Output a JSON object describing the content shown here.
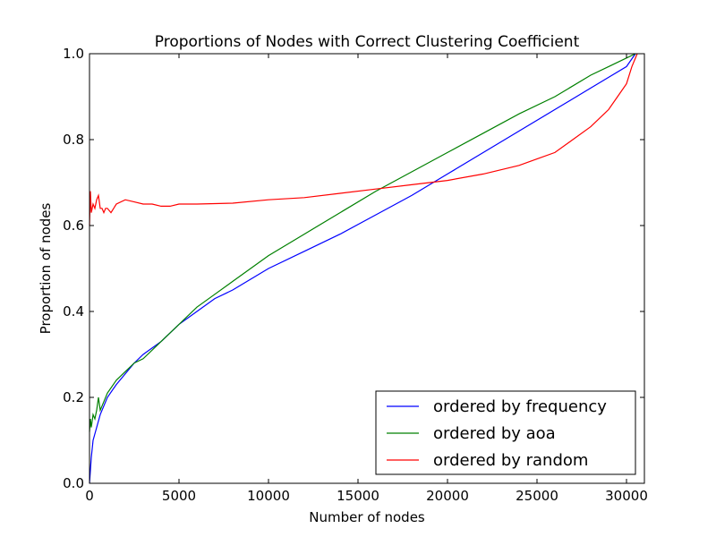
{
  "chart_data": {
    "type": "line",
    "title": "Proportions of Nodes with Correct Clustering Coefficient",
    "xlabel": "Number of nodes",
    "ylabel": "Proportion of nodes",
    "xlim": [
      0,
      31000
    ],
    "ylim": [
      0.0,
      1.0
    ],
    "xticks": [
      0,
      5000,
      10000,
      15000,
      20000,
      25000,
      30000
    ],
    "xtick_labels": [
      "0",
      "5000",
      "10000",
      "15000",
      "20000",
      "25000",
      "30000"
    ],
    "yticks": [
      0.0,
      0.2,
      0.4,
      0.6,
      0.8,
      1.0
    ],
    "ytick_labels": [
      "0.0",
      "0.2",
      "0.4",
      "0.6",
      "0.8",
      "1.0"
    ],
    "grid": false,
    "legend_position": "lower-right",
    "series": [
      {
        "name": "ordered by frequency",
        "color": "#0000ff",
        "x": [
          1,
          100,
          200,
          400,
          600,
          1000,
          1500,
          2000,
          2500,
          3000,
          4000,
          5000,
          6000,
          7000,
          8000,
          9000,
          10000,
          12000,
          14000,
          16000,
          18000,
          20000,
          22000,
          24000,
          26000,
          28000,
          29000,
          30000,
          30500
        ],
        "y": [
          0.0,
          0.06,
          0.1,
          0.13,
          0.16,
          0.2,
          0.23,
          0.255,
          0.28,
          0.3,
          0.33,
          0.37,
          0.4,
          0.43,
          0.45,
          0.475,
          0.5,
          0.54,
          0.58,
          0.625,
          0.67,
          0.72,
          0.77,
          0.82,
          0.87,
          0.92,
          0.945,
          0.97,
          1.0
        ]
      },
      {
        "name": "ordered by aoa",
        "color": "#008000",
        "x": [
          1,
          50,
          100,
          200,
          300,
          400,
          500,
          600,
          800,
          1000,
          1500,
          2000,
          2500,
          3000,
          4000,
          5000,
          6000,
          7000,
          8000,
          9000,
          10000,
          12000,
          14000,
          16000,
          18000,
          20000,
          22000,
          24000,
          26000,
          28000,
          29000,
          30000,
          30500
        ],
        "y": [
          0.12,
          0.15,
          0.13,
          0.16,
          0.15,
          0.17,
          0.2,
          0.17,
          0.19,
          0.21,
          0.24,
          0.26,
          0.28,
          0.29,
          0.33,
          0.37,
          0.41,
          0.44,
          0.47,
          0.5,
          0.53,
          0.58,
          0.63,
          0.68,
          0.725,
          0.77,
          0.815,
          0.86,
          0.9,
          0.95,
          0.97,
          0.99,
          1.0
        ]
      },
      {
        "name": "ordered by random",
        "color": "#ff0000",
        "x": [
          1,
          50,
          100,
          200,
          300,
          400,
          500,
          600,
          700,
          800,
          900,
          1000,
          1200,
          1500,
          2000,
          2500,
          3000,
          3500,
          4000,
          4500,
          5000,
          6000,
          8000,
          10000,
          12000,
          14000,
          16000,
          18000,
          20000,
          22000,
          24000,
          25000,
          26000,
          27000,
          28000,
          29000,
          29500,
          30000,
          30300,
          30600
        ],
        "y": [
          0.6,
          0.68,
          0.63,
          0.65,
          0.64,
          0.66,
          0.67,
          0.64,
          0.64,
          0.63,
          0.64,
          0.64,
          0.63,
          0.65,
          0.66,
          0.655,
          0.65,
          0.65,
          0.645,
          0.645,
          0.65,
          0.65,
          0.652,
          0.66,
          0.665,
          0.675,
          0.685,
          0.695,
          0.705,
          0.72,
          0.74,
          0.755,
          0.77,
          0.8,
          0.83,
          0.87,
          0.9,
          0.93,
          0.97,
          1.0
        ]
      }
    ]
  }
}
